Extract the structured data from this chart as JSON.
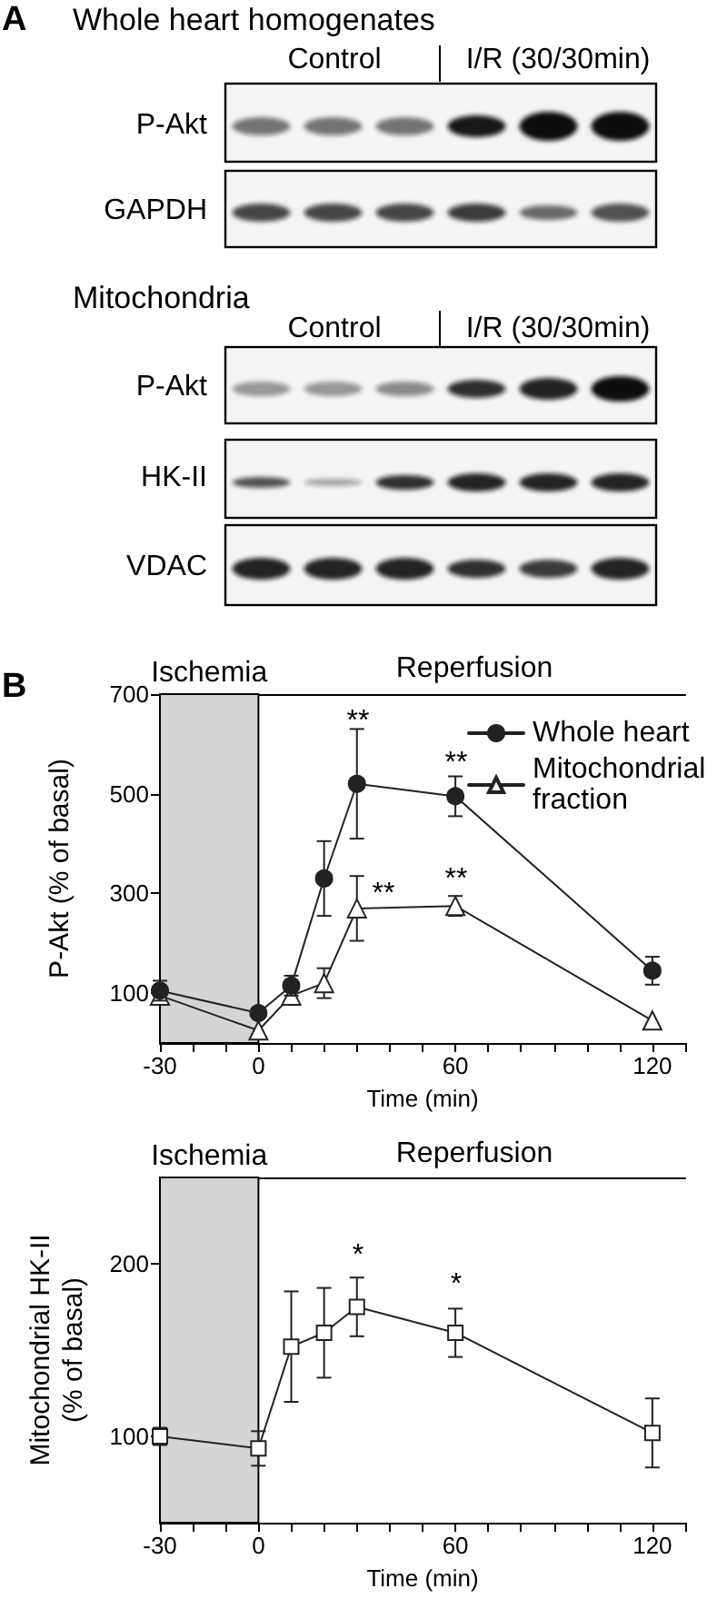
{
  "chart_data": [
    {
      "type": "other",
      "annotations": [
        "A",
        "Whole heart homogenates",
        "Control",
        "I/R (30/30min)",
        "P-Akt",
        "GAPDH",
        "Mitochondria",
        "Control",
        "I/R (30/30min)",
        "P-Akt",
        "HK-II",
        "VDAC"
      ]
    },
    {
      "type": "line",
      "annotations": [
        "B",
        "Reperfusion",
        "**",
        "**",
        "**",
        "**"
      ],
      "x": [
        -30,
        0,
        10,
        20,
        30,
        60,
        120
      ],
      "xlabel": "Time (min)",
      "ylabel": "P-Akt (% of basal)",
      "series": [
        {
          "name": "Whole heart",
          "color": "#222222",
          "marker": "circle",
          "values": [
            105,
            60,
            115,
            330,
            520,
            495,
            145
          ],
          "errors": [
            20,
            null,
            20,
            75,
            110,
            40,
            28
          ]
        },
        {
          "name": "Mitochondrial fraction",
          "color": "#222222",
          "marker": "triangle",
          "values": [
            95,
            25,
            95,
            120,
            270,
            275,
            45
          ],
          "errors": [
            null,
            null,
            null,
            30,
            65,
            20,
            null
          ]
        }
      ],
      "xlim": [
        -30,
        130
      ],
      "xticks": [
        -30,
        {
          "value": -20,
          "label": null
        },
        {
          "value": -10,
          "label": null
        },
        0,
        {
          "value": 10,
          "label": null
        },
        {
          "value": 20,
          "label": null
        },
        {
          "value": 30,
          "label": null
        },
        {
          "value": 40,
          "label": null
        },
        {
          "value": 50,
          "label": null
        },
        60,
        {
          "value": 70,
          "label": null
        },
        {
          "value": 80,
          "label": null
        },
        {
          "value": 90,
          "label": null
        },
        {
          "value": 100,
          "label": null
        },
        {
          "value": 110,
          "label": null
        },
        120,
        {
          "value": 130,
          "label": null
        }
      ],
      "ylim": [
        0,
        700
      ],
      "yticks": [
        100,
        300,
        500,
        700
      ],
      "bands": [
        {
          "axis": "x",
          "from": -30,
          "to": 0,
          "label": "Ischemia",
          "color": "#d4d4d4"
        }
      ],
      "legend": "top right"
    },
    {
      "type": "line",
      "annotations": [
        "Reperfusion",
        "*",
        "*"
      ],
      "x": [
        -30,
        0,
        10,
        20,
        30,
        60,
        120
      ],
      "xlabel": "Time (min)",
      "ylabel": "Mitochondrial HK-II (% of basal)",
      "series": [
        {
          "color": "#222222",
          "marker": "square",
          "values": [
            100,
            93,
            152,
            160,
            175,
            160,
            102
          ],
          "errors": [
            5,
            10,
            32,
            26,
            17,
            14,
            20
          ]
        }
      ],
      "xlim": [
        -30,
        130
      ],
      "xticks": [
        -30,
        {
          "value": -20,
          "label": null
        },
        {
          "value": -10,
          "label": null
        },
        0,
        {
          "value": 10,
          "label": null
        },
        {
          "value": 20,
          "label": null
        },
        {
          "value": 30,
          "label": null
        },
        {
          "value": 40,
          "label": null
        },
        {
          "value": 50,
          "label": null
        },
        60,
        {
          "value": 70,
          "label": null
        },
        {
          "value": 80,
          "label": null
        },
        {
          "value": 90,
          "label": null
        },
        {
          "value": 100,
          "label": null
        },
        {
          "value": 110,
          "label": null
        },
        120,
        {
          "value": 130,
          "label": null
        }
      ],
      "ylim": [
        50,
        250
      ],
      "yticks": [
        100,
        200
      ],
      "bands": [
        {
          "axis": "x",
          "from": -30,
          "to": 0,
          "label": "Ischemia",
          "color": "#d4d4d4"
        }
      ]
    }
  ]
}
